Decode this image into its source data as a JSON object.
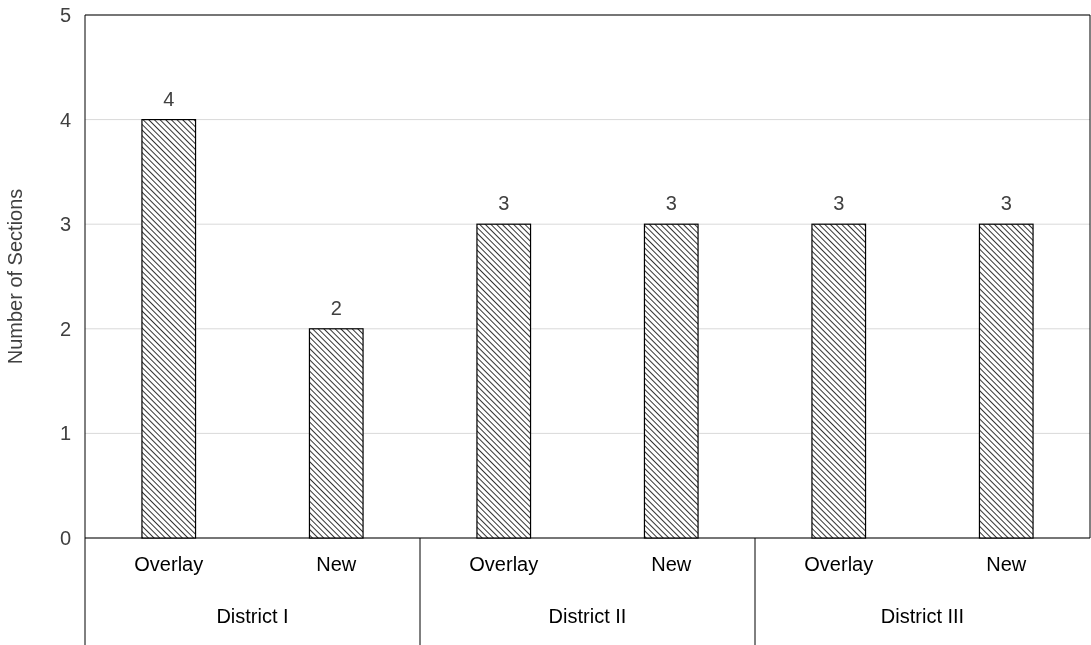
{
  "chart_data": {
    "type": "bar",
    "ylabel": "Number of Sections",
    "categories": [
      "Overlay",
      "New",
      "Overlay",
      "New",
      "Overlay",
      "New"
    ],
    "values": [
      4,
      2,
      3,
      3,
      3,
      3
    ],
    "color": "#000000",
    "ylim": [
      0,
      5
    ],
    "yticks": [
      0,
      1,
      2,
      3,
      4,
      5
    ],
    "grid": "y",
    "data_labels": true,
    "annotations": [
      "District I",
      "District II",
      "District III"
    ]
  }
}
